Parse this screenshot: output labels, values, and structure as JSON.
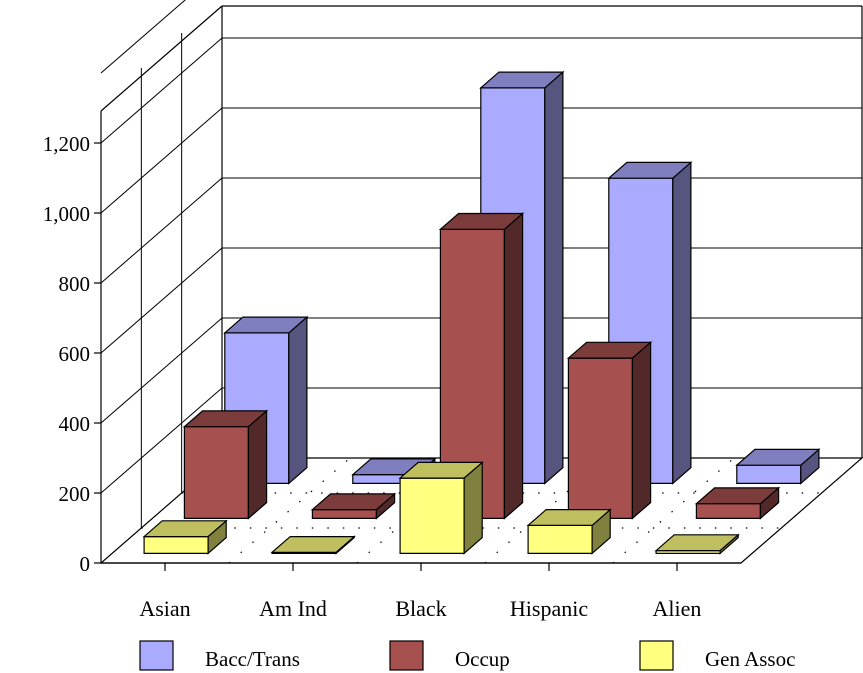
{
  "chart_data": {
    "type": "bar",
    "title": "",
    "xlabel": "",
    "ylabel": "",
    "ylim": [
      0,
      1200
    ],
    "yticks": [
      0,
      200,
      400,
      600,
      800,
      1000,
      1200
    ],
    "ytick_labels": [
      "0",
      "200",
      "400",
      "600",
      "800",
      "1,000",
      "1,200"
    ],
    "categories": [
      "Asian",
      "Am Ind",
      "Black",
      "Hispanic",
      "Alien"
    ],
    "series": [
      {
        "name": "Gen Assoc",
        "color": "#FFFF80",
        "values": [
          48,
          3,
          215,
          80,
          8
        ]
      },
      {
        "name": "Occup",
        "color": "#A65050",
        "values": [
          262,
          25,
          826,
          458,
          42
        ]
      },
      {
        "name": "Bacc/Trans",
        "color": "#AAAAFF",
        "values": [
          430,
          25,
          1130,
          872,
          52
        ]
      }
    ],
    "legend": {
      "position": "bottom",
      "entries": [
        "Bacc/Trans",
        "Occup",
        "Gen Assoc"
      ]
    },
    "grid": true,
    "three_d": true
  }
}
